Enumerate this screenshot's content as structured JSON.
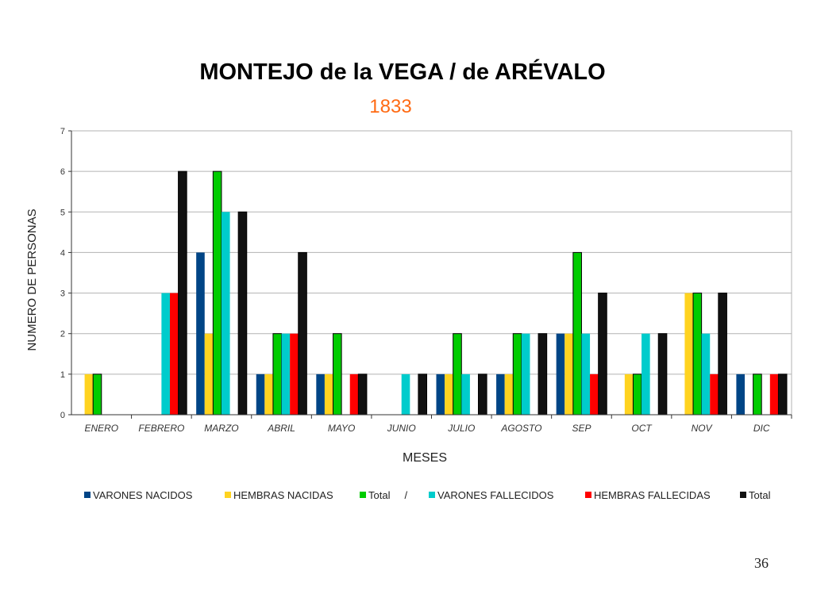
{
  "chart_data": {
    "type": "bar",
    "title": "MONTEJO de la VEGA / de ARÉVALO",
    "subtitle": "1833",
    "xlabel": "MESES",
    "ylabel": "NUMERO DE PERSONAS",
    "ylim": [
      0,
      7
    ],
    "yticks": [
      "0",
      "1",
      "2",
      "3",
      "4",
      "5",
      "6",
      "7"
    ],
    "grid": true,
    "legend_position": "bottom",
    "categories": [
      "ENERO",
      "FEBRERO",
      "MARZO",
      "ABRIL",
      "MAYO",
      "JUNIO",
      "JULIO",
      "AGOSTO",
      "SEP",
      "OCT",
      "NOV",
      "DIC"
    ],
    "series": [
      {
        "name": "VARONES NACIDOS",
        "color": "#004586",
        "values": [
          0,
          0,
          4,
          1,
          1,
          0,
          1,
          1,
          2,
          0,
          0,
          1
        ]
      },
      {
        "name": "HEMBRAS NACIDAS",
        "color": "#ffd320",
        "values": [
          1,
          0,
          2,
          1,
          1,
          0,
          1,
          1,
          2,
          1,
          3,
          0
        ]
      },
      {
        "name": "Total     /",
        "color": "#00cc00",
        "values": [
          1,
          0,
          6,
          2,
          2,
          0,
          2,
          2,
          4,
          1,
          3,
          1
        ]
      },
      {
        "name": "VARONES FALLECIDOS",
        "color": "#00cccc",
        "values": [
          0,
          3,
          5,
          2,
          0,
          1,
          1,
          2,
          2,
          2,
          2,
          0
        ]
      },
      {
        "name": "HEMBRAS FALLECIDAS",
        "color": "#ff0000",
        "values": [
          0,
          3,
          0,
          2,
          1,
          0,
          0,
          0,
          1,
          0,
          1,
          1
        ]
      },
      {
        "name": "Total",
        "color": "#111111",
        "values": [
          0,
          6,
          5,
          4,
          1,
          1,
          1,
          2,
          3,
          2,
          3,
          1
        ]
      }
    ],
    "title_color": "#000000",
    "subtitle_color": "#ff6a13"
  },
  "page_number": "36"
}
